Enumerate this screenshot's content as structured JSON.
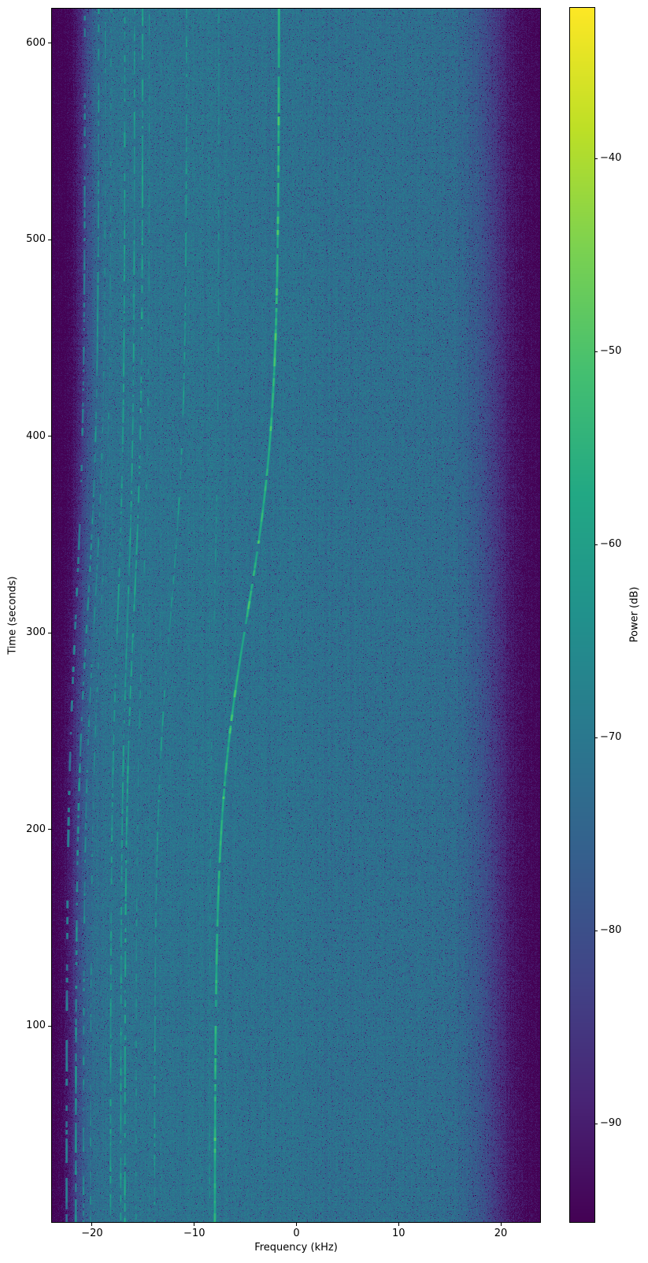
{
  "chart_data": {
    "type": "heatmap",
    "subtype": "spectrogram-waterfall",
    "title": "",
    "xlabel": "Frequency (kHz)",
    "ylabel": "Time (seconds)",
    "colorbar_label": "Power (dB)",
    "xlim": [
      -23.93,
      23.85
    ],
    "ylim": [
      0,
      617.5
    ],
    "clim": [
      -95.1,
      -32.2
    ],
    "x_ticks": [
      -20,
      -10,
      0,
      10,
      20
    ],
    "y_ticks": [
      100,
      200,
      300,
      400,
      500,
      600
    ],
    "colorbar_ticks": [
      -40,
      -50,
      -60,
      -70,
      -80,
      -90
    ],
    "grid": false,
    "colormap": "viridis",
    "viridis_stops": [
      "#440154",
      "#482475",
      "#414487",
      "#355f8d",
      "#2a788e",
      "#21918c",
      "#22a884",
      "#44bf70",
      "#7ad151",
      "#bddf26",
      "#fde725"
    ],
    "background_model": {
      "noise_floor_db": -96,
      "passband_db": -72,
      "noise_sigma_db": 3.5,
      "dark_speckle_prob": 0.045,
      "left_edge_khz": -21.7,
      "left_edge_width_khz": 0.6,
      "left_edge_doppler_shift_khz": 0.9,
      "right_edge_khz": 19.4,
      "right_edge_width_khz": 1.4,
      "midband_boost_db": 1.0,
      "midband_center_khz": -11,
      "midband_sigma_khz": 7
    },
    "doppler_s_curve": {
      "center_s": 308,
      "width_s": 50
    },
    "tracks": [
      {
        "f_start_khz": -22.5,
        "f_end_khz": -20.7,
        "level_db": -68,
        "gap_prob": 0.55
      },
      {
        "f_start_khz": -21.6,
        "f_end_khz": -19.35,
        "level_db": -64,
        "gap_prob": 0.45
      },
      {
        "f_start_khz": -20.85,
        "f_end_khz": -18.7,
        "level_db": -66,
        "gap_prob": 0.5
      },
      {
        "f_start_khz": -20.15,
        "f_end_khz": -18.15,
        "level_db": -67,
        "gap_prob": 0.6
      },
      {
        "f_start_khz": -18.2,
        "f_end_khz": -16.8,
        "level_db": -62,
        "gap_prob": 0.35
      },
      {
        "f_start_khz": -17.2,
        "f_end_khz": -15.85,
        "level_db": -62,
        "gap_prob": 0.35
      },
      {
        "f_start_khz": -16.8,
        "f_end_khz": -15.05,
        "level_db": -60,
        "gap_prob": 0.28
      },
      {
        "f_start_khz": -15.7,
        "f_end_khz": -14.4,
        "level_db": -66,
        "gap_prob": 0.5
      },
      {
        "f_start_khz": -13.9,
        "f_end_khz": -10.75,
        "level_db": -63,
        "gap_prob": 0.4
      },
      {
        "f_start_khz": -8.5,
        "f_end_khz": -7.6,
        "level_db": -67,
        "gap_prob": 0.55
      },
      {
        "f_start_khz": -8.0,
        "f_end_khz": -1.7,
        "level_db": -56,
        "gap_prob": 0.12,
        "main": true
      }
    ]
  }
}
